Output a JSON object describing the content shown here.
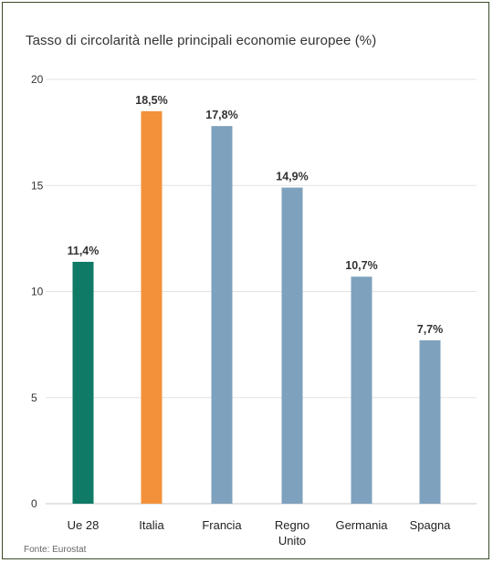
{
  "chart_data": {
    "type": "bar",
    "title": "Tasso di circolarità nelle principali economie europee (%)",
    "source": "Fonte: Eurostat",
    "xlabel": "",
    "ylabel": "",
    "ylim": [
      0,
      20
    ],
    "yticks": [
      "0",
      "5",
      "10",
      "15",
      "20"
    ],
    "grid": true,
    "categories": [
      [
        "Ue 28"
      ],
      [
        "Italia"
      ],
      [
        "Francia"
      ],
      [
        "Regno",
        "Unito"
      ],
      [
        "Germania"
      ],
      [
        "Spagna"
      ]
    ],
    "values": [
      11.4,
      18.5,
      17.8,
      14.9,
      10.7,
      7.7
    ],
    "data_labels": [
      "11,4%",
      "18,5%",
      "17,8%",
      "14,9%",
      "10,7%",
      "7,7%"
    ],
    "colors": [
      "#0f7a66",
      "#f2913a",
      "#7ea1bd",
      "#7ea1bd",
      "#7ea1bd",
      "#7ea1bd"
    ]
  }
}
